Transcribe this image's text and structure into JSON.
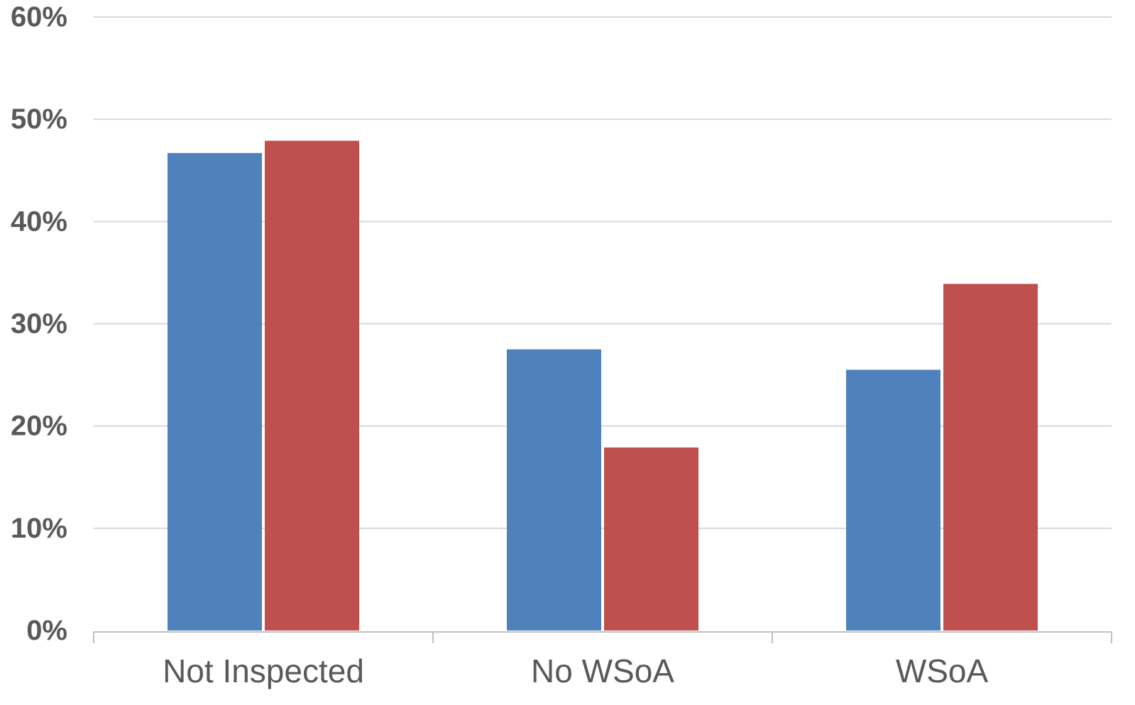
{
  "chart_data": {
    "type": "bar",
    "categories": [
      "Not Inspected",
      "No WSoA",
      "WSoA"
    ],
    "series": [
      {
        "color": "#4f81bd",
        "values": [
          46.7,
          27.5,
          25.5
        ]
      },
      {
        "color": "#c0504d",
        "values": [
          47.9,
          17.9,
          33.9
        ]
      }
    ],
    "ylim": [
      0,
      60
    ],
    "yticks": [
      0,
      10,
      20,
      30,
      40,
      50,
      60
    ],
    "ytick_labels": [
      "0%",
      "10%",
      "20%",
      "30%",
      "40%",
      "50%",
      "60%"
    ],
    "grid": true,
    "legend": "none"
  }
}
